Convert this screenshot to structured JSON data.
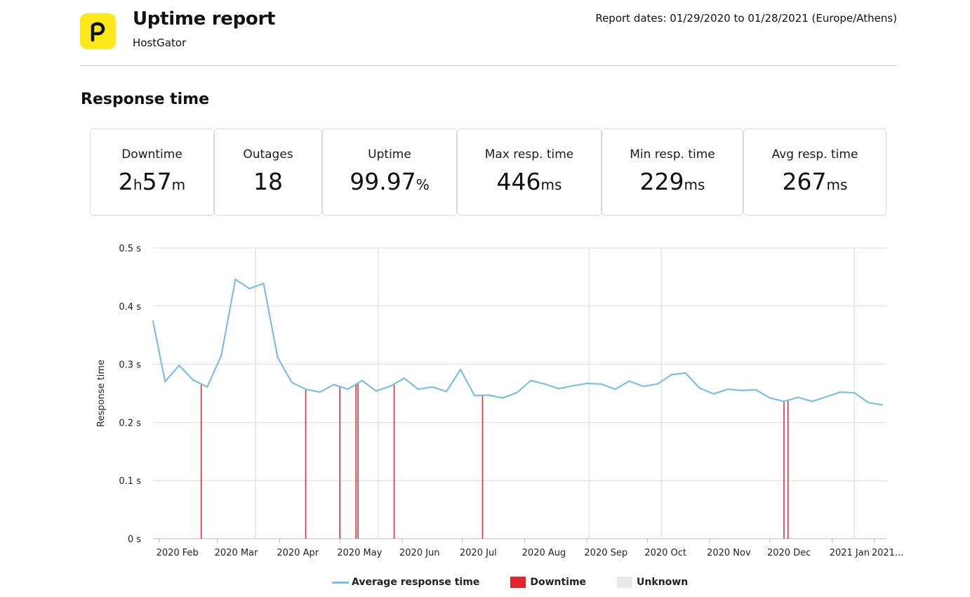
{
  "header": {
    "title": "Uptime report",
    "subtitle": "HostGator",
    "report_dates": "Report dates: 01/29/2020 to 01/28/2021 (Europe/Athens)"
  },
  "section_title": "Response time",
  "stats": [
    {
      "label": "Downtime",
      "value_parts": [
        {
          "n": "2",
          "u": "h"
        },
        {
          "n": "57",
          "u": "m"
        }
      ]
    },
    {
      "label": "Outages",
      "value_parts": [
        {
          "n": "18",
          "u": ""
        }
      ]
    },
    {
      "label": "Uptime",
      "value_parts": [
        {
          "n": "99.97",
          "u": "%"
        }
      ]
    },
    {
      "label": "Max resp. time",
      "value_parts": [
        {
          "n": "446",
          "u": "ms"
        }
      ]
    },
    {
      "label": "Min resp. time",
      "value_parts": [
        {
          "n": "229",
          "u": "ms"
        }
      ]
    },
    {
      "label": "Avg resp. time",
      "value_parts": [
        {
          "n": "267",
          "u": "ms"
        }
      ]
    }
  ],
  "colors": {
    "line": "#7cbfe6",
    "downtime": "#e2232a",
    "unknown": "#e9e9e9",
    "grid": "#dddddd",
    "logo": "#ffe81a"
  },
  "chart_data": {
    "type": "line",
    "ylabel": "Response time",
    "ylim": [
      0,
      0.5
    ],
    "y_ticks": [
      "0 s",
      "0.1 s",
      "0.2 s",
      "0.3 s",
      "0.4 s",
      "0.5 s"
    ],
    "x_range": [
      "2020-01-29",
      "2021-01-28"
    ],
    "x_ticks": [
      {
        "date": "2020-02-01",
        "label": "2020 Feb"
      },
      {
        "date": "2020-03-01",
        "label": "2020 Mar"
      },
      {
        "date": "2020-04-01",
        "label": "2020 Apr"
      },
      {
        "date": "2020-05-01",
        "label": "2020 May"
      },
      {
        "date": "2020-06-01",
        "label": "2020 Jun"
      },
      {
        "date": "2020-07-01",
        "label": "2020 Jul"
      },
      {
        "date": "2020-08-01",
        "label": "2020 Aug"
      },
      {
        "date": "2020-09-01",
        "label": "2020 Sep"
      },
      {
        "date": "2020-10-01",
        "label": "2020 Oct"
      },
      {
        "date": "2020-11-01",
        "label": "2020 Nov"
      },
      {
        "date": "2020-12-01",
        "label": "2020 Dec"
      },
      {
        "date": "2021-01-01",
        "label": "2021 Jan"
      },
      {
        "date": "2021-01-22",
        "label": "2021..."
      }
    ],
    "series": [
      {
        "name": "Average response time",
        "points": [
          [
            "2020-01-29",
            0.374
          ],
          [
            "2020-02-04",
            0.27
          ],
          [
            "2020-02-11",
            0.298
          ],
          [
            "2020-02-18",
            0.273
          ],
          [
            "2020-02-25",
            0.261
          ],
          [
            "2020-03-03",
            0.315
          ],
          [
            "2020-03-10",
            0.446
          ],
          [
            "2020-03-17",
            0.43
          ],
          [
            "2020-03-24",
            0.439
          ],
          [
            "2020-03-31",
            0.312
          ],
          [
            "2020-04-07",
            0.269
          ],
          [
            "2020-04-14",
            0.257
          ],
          [
            "2020-04-21",
            0.252
          ],
          [
            "2020-04-28",
            0.265
          ],
          [
            "2020-05-05",
            0.257
          ],
          [
            "2020-05-12",
            0.272
          ],
          [
            "2020-05-19",
            0.254
          ],
          [
            "2020-05-26",
            0.262
          ],
          [
            "2020-06-02",
            0.276
          ],
          [
            "2020-06-09",
            0.257
          ],
          [
            "2020-06-16",
            0.261
          ],
          [
            "2020-06-23",
            0.253
          ],
          [
            "2020-06-30",
            0.291
          ],
          [
            "2020-07-07",
            0.246
          ],
          [
            "2020-07-14",
            0.247
          ],
          [
            "2020-07-21",
            0.242
          ],
          [
            "2020-07-28",
            0.251
          ],
          [
            "2020-08-04",
            0.272
          ],
          [
            "2020-08-11",
            0.266
          ],
          [
            "2020-08-18",
            0.258
          ],
          [
            "2020-08-25",
            0.263
          ],
          [
            "2020-09-01",
            0.267
          ],
          [
            "2020-09-08",
            0.266
          ],
          [
            "2020-09-15",
            0.257
          ],
          [
            "2020-09-22",
            0.271
          ],
          [
            "2020-09-29",
            0.262
          ],
          [
            "2020-10-06",
            0.266
          ],
          [
            "2020-10-13",
            0.282
          ],
          [
            "2020-10-20",
            0.285
          ],
          [
            "2020-10-27",
            0.259
          ],
          [
            "2020-11-03",
            0.249
          ],
          [
            "2020-11-10",
            0.257
          ],
          [
            "2020-11-17",
            0.255
          ],
          [
            "2020-11-24",
            0.256
          ],
          [
            "2020-12-01",
            0.242
          ],
          [
            "2020-12-08",
            0.236
          ],
          [
            "2020-12-15",
            0.243
          ],
          [
            "2020-12-22",
            0.236
          ],
          [
            "2020-12-29",
            0.244
          ],
          [
            "2021-01-05",
            0.252
          ],
          [
            "2021-01-12",
            0.251
          ],
          [
            "2021-01-19",
            0.234
          ],
          [
            "2021-01-26",
            0.23
          ]
        ]
      }
    ],
    "downtime_events": [
      "2020-02-22",
      "2020-04-14",
      "2020-05-01",
      "2020-05-09",
      "2020-05-10",
      "2020-05-28",
      "2020-07-11",
      "2020-12-08",
      "2020-12-10"
    ],
    "unknown_periods": [
      "2020-03-20",
      "2020-05-20",
      "2020-09-02",
      "2020-10-08",
      "2021-01-12"
    ],
    "legend": [
      "Average response time",
      "Downtime",
      "Unknown"
    ],
    "grid": true,
    "legend_position": "bottom"
  }
}
